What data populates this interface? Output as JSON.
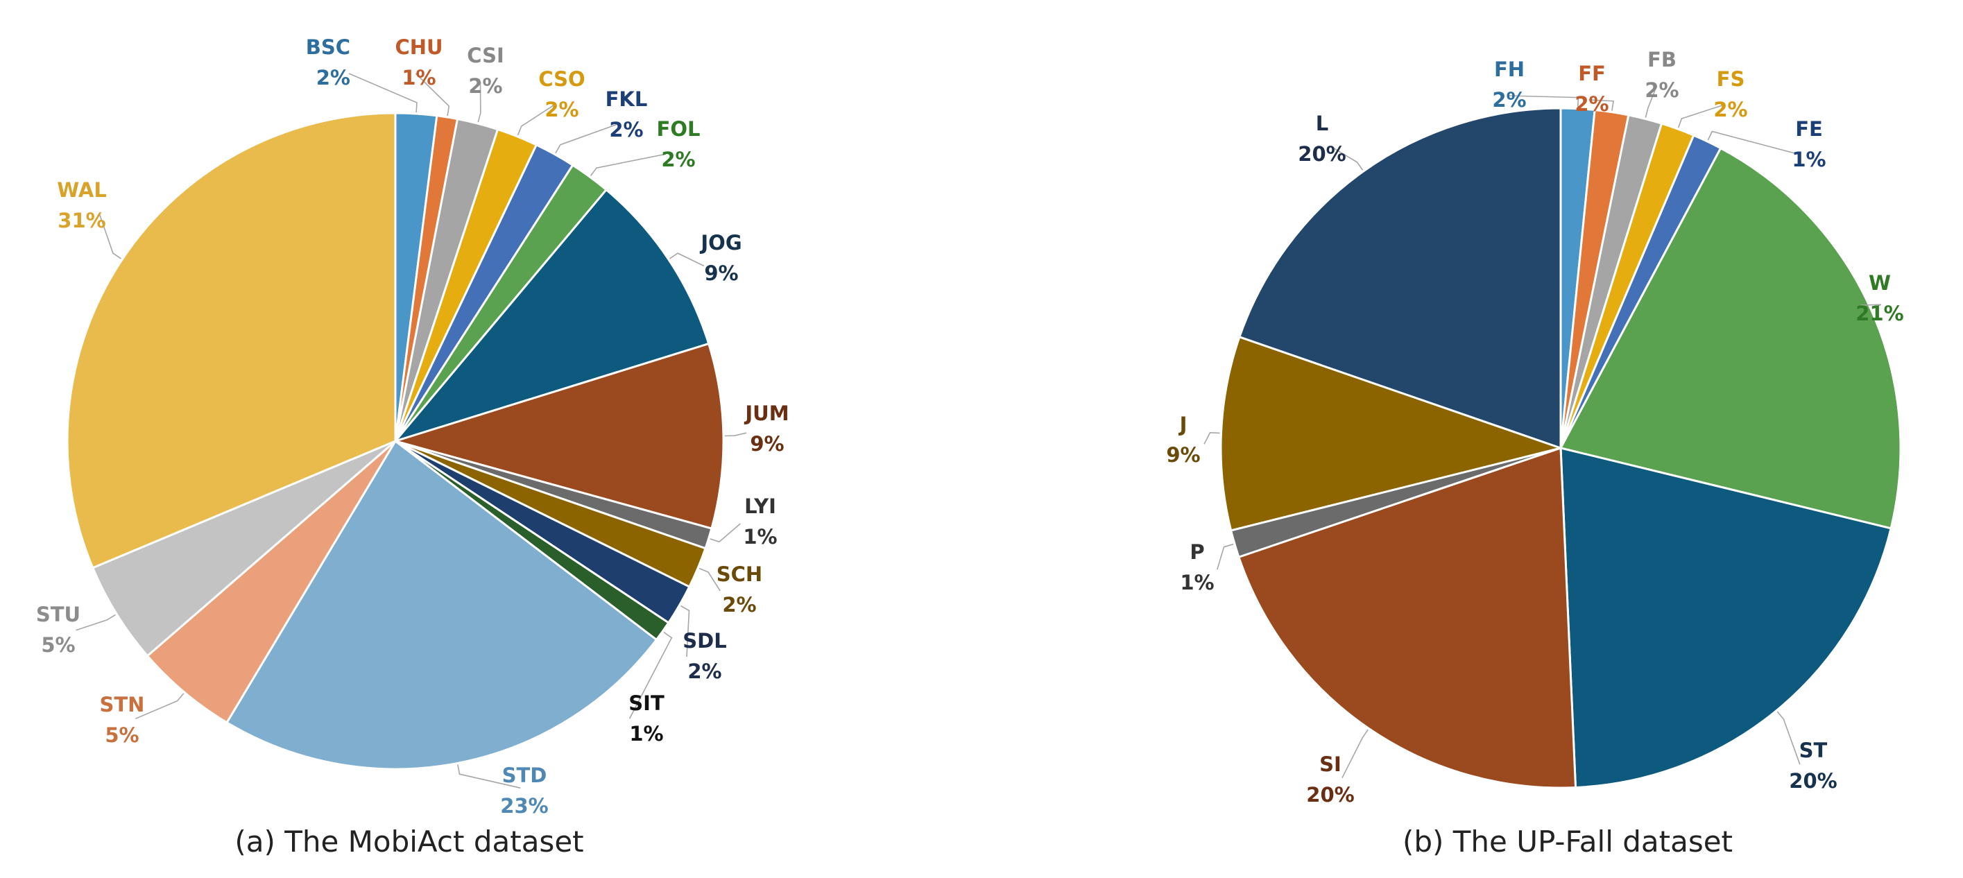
{
  "chart_data": [
    {
      "type": "pie",
      "title": "(a) The MobiAct dataset",
      "slices": [
        {
          "label": "BSC",
          "value": 2,
          "display": "2%",
          "color": "#4a96c8",
          "label_color": "#2d6e9e"
        },
        {
          "label": "CHU",
          "value": 1,
          "display": "1%",
          "color": "#e2773a",
          "label_color": "#c05a28"
        },
        {
          "label": "CSI",
          "value": 2,
          "display": "2%",
          "color": "#a5a5a5",
          "label_color": "#888888"
        },
        {
          "label": "CSO",
          "value": 2,
          "display": "2%",
          "color": "#e6ad10",
          "label_color": "#d59a10"
        },
        {
          "label": "FKL",
          "value": 2,
          "display": "2%",
          "color": "#4470b8",
          "label_color": "#1d3f78"
        },
        {
          "label": "FOL",
          "value": 2,
          "display": "2%",
          "color": "#5aa150",
          "label_color": "#2f7a24"
        },
        {
          "label": "JOG",
          "value": 9,
          "display": "9%",
          "color": "#0d5a7e",
          "label_color": "#17324d"
        },
        {
          "label": "JUM",
          "value": 9,
          "display": "9%",
          "color": "#9b4a1f",
          "label_color": "#6a2f12"
        },
        {
          "label": "LYI",
          "value": 1,
          "display": "1%",
          "color": "#6b6b6b",
          "label_color": "#333333"
        },
        {
          "label": "SCH",
          "value": 2,
          "display": "2%",
          "color": "#8b6400",
          "label_color": "#6a4a08"
        },
        {
          "label": "SDL",
          "value": 2,
          "display": "2%",
          "color": "#1e3f6e",
          "label_color": "#1d2d4a"
        },
        {
          "label": "SIT",
          "value": 1,
          "display": "1%",
          "color": "#2a5e2a",
          "label_color": "#111111"
        },
        {
          "label": "STD",
          "value": 23,
          "display": "23%",
          "color": "#7faecf",
          "label_color": "#4f88b4"
        },
        {
          "label": "STN",
          "value": 5,
          "display": "5%",
          "color": "#eaa07a",
          "label_color": "#c8703e"
        },
        {
          "label": "STU",
          "value": 5,
          "display": "5%",
          "color": "#c3c3c3",
          "label_color": "#8c8c8c"
        },
        {
          "label": "WAL",
          "value": 31,
          "display": "31%",
          "color": "#e8bb4c",
          "label_color": "#d9a32a"
        }
      ]
    },
    {
      "type": "pie",
      "title": "(b) The UP-Fall dataset",
      "slices": [
        {
          "label": "FH",
          "value": 1.6,
          "display": "2%",
          "color": "#4a96c8",
          "label_color": "#2d6e9e"
        },
        {
          "label": "FF",
          "value": 1.6,
          "display": "2%",
          "color": "#e2773a",
          "label_color": "#c05a28"
        },
        {
          "label": "FB",
          "value": 1.6,
          "display": "2%",
          "color": "#a5a5a5",
          "label_color": "#888888"
        },
        {
          "label": "FS",
          "value": 1.6,
          "display": "2%",
          "color": "#e6ad10",
          "label_color": "#d59a10"
        },
        {
          "label": "FE",
          "value": 1.4,
          "display": "1%",
          "color": "#4470b8",
          "label_color": "#1d3f78"
        },
        {
          "label": "W",
          "value": 21,
          "display": "21%",
          "color": "#5aa150",
          "label_color": "#2f7a24"
        },
        {
          "label": "ST",
          "value": 20.5,
          "display": "20%",
          "color": "#0d5a7e",
          "label_color": "#17324d"
        },
        {
          "label": "SI",
          "value": 20.5,
          "display": "20%",
          "color": "#9b4a1f",
          "label_color": "#6a2f12"
        },
        {
          "label": "P",
          "value": 1.3,
          "display": "1%",
          "color": "#6b6b6b",
          "label_color": "#333333"
        },
        {
          "label": "J",
          "value": 9.2,
          "display": "9%",
          "color": "#8b6400",
          "label_color": "#6a4a08"
        },
        {
          "label": "L",
          "value": 19.7,
          "display": "20%",
          "color": "#23466b",
          "label_color": "#1d2d4a"
        }
      ]
    }
  ]
}
